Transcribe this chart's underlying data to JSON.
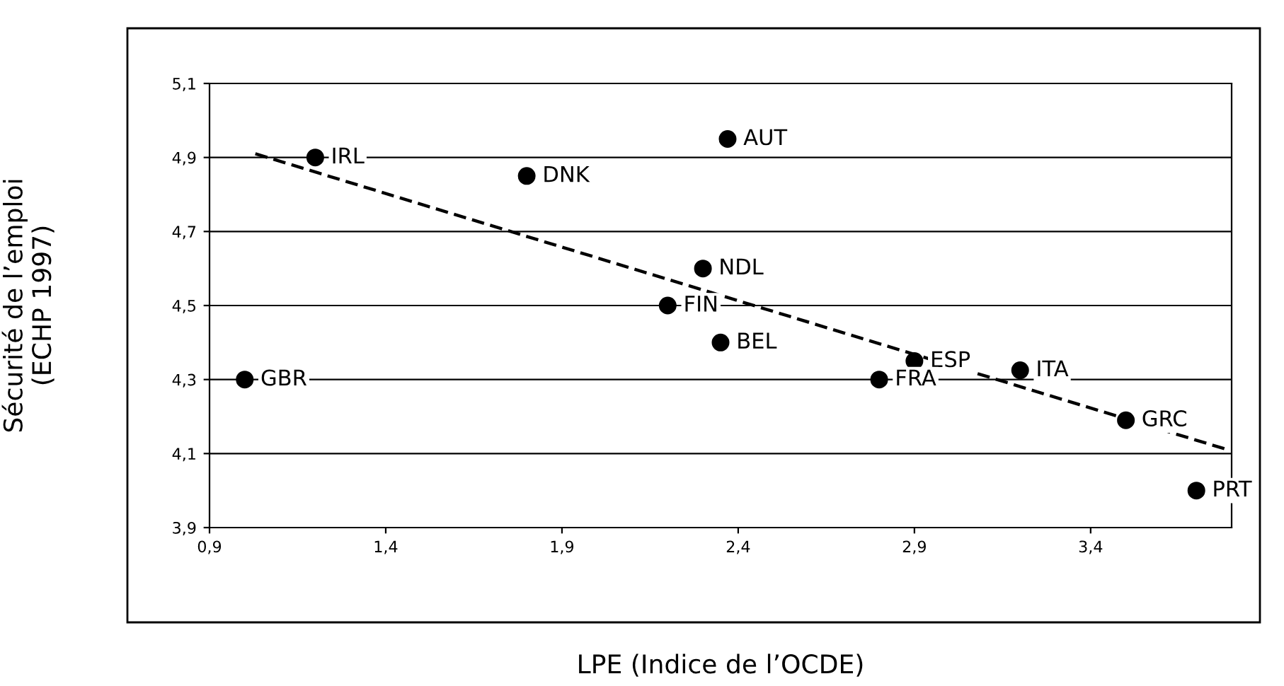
{
  "chart_data": {
    "type": "scatter",
    "xlabel": "LPE (Indice de l’OCDE)",
    "ylabel": "Sécurité de l’emploi\n(ECHP 1997)",
    "xlim": [
      0.9,
      3.8
    ],
    "ylim": [
      3.9,
      5.1
    ],
    "xticks": [
      {
        "value": 0.9,
        "label": "0,9"
      },
      {
        "value": 1.4,
        "label": "1,4"
      },
      {
        "value": 1.9,
        "label": "1,9"
      },
      {
        "value": 2.4,
        "label": "2,4"
      },
      {
        "value": 2.9,
        "label": "2,9"
      },
      {
        "value": 3.4,
        "label": "3,4"
      }
    ],
    "yticks": [
      {
        "value": 3.9,
        "label": "3,9"
      },
      {
        "value": 4.1,
        "label": "4,1"
      },
      {
        "value": 4.3,
        "label": "4,3"
      },
      {
        "value": 4.5,
        "label": "4,5"
      },
      {
        "value": 4.7,
        "label": "4,7"
      },
      {
        "value": 4.9,
        "label": "4,9"
      },
      {
        "value": 5.1,
        "label": "5,1"
      }
    ],
    "grid": "y",
    "marker": "circle",
    "series": [
      {
        "color": "#000000",
        "x": [
          1.2,
          1.8,
          2.37,
          2.3,
          2.2,
          2.35,
          2.9,
          2.8,
          3.2,
          3.5,
          3.7,
          1.0
        ],
        "values": [
          4.9,
          4.85,
          4.95,
          4.6,
          4.5,
          4.4,
          4.35,
          4.3,
          4.325,
          4.19,
          4.0,
          4.3
        ]
      },
      {
        "type": "line",
        "color": "#000000",
        "line_style": "dashed",
        "marker": "none",
        "x": [
          1.03,
          3.79
        ],
        "values": [
          4.91,
          4.11
        ]
      }
    ],
    "annotations": [
      {
        "text": "IRL",
        "x": 1.2,
        "y": 4.9
      },
      {
        "text": "DNK",
        "x": 1.8,
        "y": 4.85
      },
      {
        "text": "AUT",
        "x": 2.37,
        "y": 4.95
      },
      {
        "text": "NDL",
        "x": 2.3,
        "y": 4.6
      },
      {
        "text": "FIN",
        "x": 2.2,
        "y": 4.5
      },
      {
        "text": "BEL",
        "x": 2.35,
        "y": 4.4
      },
      {
        "text": "ESP",
        "x": 2.9,
        "y": 4.35
      },
      {
        "text": "FRA",
        "x": 2.8,
        "y": 4.3
      },
      {
        "text": "ITA",
        "x": 3.2,
        "y": 4.325
      },
      {
        "text": "GRC",
        "x": 3.5,
        "y": 4.19
      },
      {
        "text": "PRT",
        "x": 3.7,
        "y": 4.0
      },
      {
        "text": "GBR",
        "x": 1.0,
        "y": 4.3
      }
    ]
  }
}
